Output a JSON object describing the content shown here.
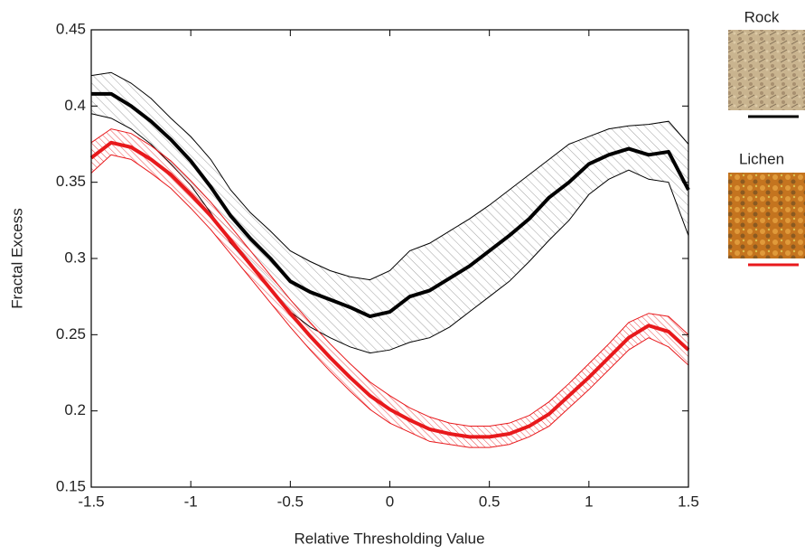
{
  "chart_data": {
    "type": "line",
    "x_label": "Relative Thresholding Value",
    "y_label": "Fractal Excess",
    "x": [
      -1.5,
      -1.4,
      -1.3,
      -1.2,
      -1.1,
      -1.0,
      -0.9,
      -0.8,
      -0.7,
      -0.6,
      -0.5,
      -0.4,
      -0.3,
      -0.2,
      -0.1,
      0,
      0.1,
      0.2,
      0.3,
      0.4,
      0.5,
      0.6,
      0.7,
      0.8,
      0.9,
      1.0,
      1.1,
      1.2,
      1.3,
      1.4,
      1.5
    ],
    "series": [
      {
        "name": "Rock",
        "color": "#000000",
        "values": [
          0.408,
          0.408,
          0.4,
          0.39,
          0.378,
          0.364,
          0.347,
          0.328,
          0.313,
          0.3,
          0.285,
          0.278,
          0.273,
          0.268,
          0.262,
          0.265,
          0.275,
          0.279,
          0.287,
          0.295,
          0.305,
          0.315,
          0.326,
          0.34,
          0.35,
          0.362,
          0.368,
          0.372,
          0.368,
          0.37,
          0.345
        ],
        "upper": [
          0.42,
          0.422,
          0.415,
          0.405,
          0.392,
          0.38,
          0.365,
          0.345,
          0.33,
          0.318,
          0.305,
          0.298,
          0.292,
          0.288,
          0.286,
          0.292,
          0.305,
          0.31,
          0.318,
          0.326,
          0.335,
          0.345,
          0.355,
          0.365,
          0.375,
          0.38,
          0.385,
          0.387,
          0.388,
          0.39,
          0.375
        ],
        "lower": [
          0.395,
          0.392,
          0.385,
          0.375,
          0.362,
          0.348,
          0.33,
          0.31,
          0.295,
          0.28,
          0.265,
          0.255,
          0.248,
          0.242,
          0.238,
          0.24,
          0.245,
          0.248,
          0.255,
          0.265,
          0.275,
          0.285,
          0.298,
          0.312,
          0.325,
          0.342,
          0.352,
          0.358,
          0.352,
          0.35,
          0.315
        ]
      },
      {
        "name": "Lichen",
        "color": "#e8191c",
        "values": [
          0.366,
          0.376,
          0.373,
          0.365,
          0.355,
          0.342,
          0.328,
          0.312,
          0.296,
          0.28,
          0.264,
          0.249,
          0.235,
          0.222,
          0.21,
          0.201,
          0.194,
          0.188,
          0.185,
          0.183,
          0.183,
          0.185,
          0.19,
          0.198,
          0.21,
          0.222,
          0.235,
          0.248,
          0.256,
          0.252,
          0.24
        ],
        "upper": [
          0.376,
          0.385,
          0.382,
          0.374,
          0.364,
          0.351,
          0.337,
          0.321,
          0.305,
          0.289,
          0.273,
          0.258,
          0.244,
          0.231,
          0.219,
          0.21,
          0.202,
          0.196,
          0.192,
          0.19,
          0.19,
          0.192,
          0.197,
          0.206,
          0.218,
          0.231,
          0.244,
          0.258,
          0.264,
          0.262,
          0.25
        ],
        "lower": [
          0.356,
          0.368,
          0.365,
          0.356,
          0.346,
          0.333,
          0.319,
          0.303,
          0.287,
          0.271,
          0.255,
          0.24,
          0.226,
          0.213,
          0.201,
          0.192,
          0.186,
          0.18,
          0.178,
          0.176,
          0.176,
          0.178,
          0.183,
          0.19,
          0.202,
          0.214,
          0.227,
          0.24,
          0.248,
          0.242,
          0.23
        ]
      }
    ],
    "xlim": [
      -1.5,
      1.5
    ],
    "xticks": [
      -1.5,
      -1,
      -0.5,
      0,
      0.5,
      1,
      1.5
    ],
    "ylim": [
      0.15,
      0.45
    ],
    "yticks": [
      0.15,
      0.2,
      0.25,
      0.3,
      0.35,
      0.4,
      0.45
    ]
  }
}
